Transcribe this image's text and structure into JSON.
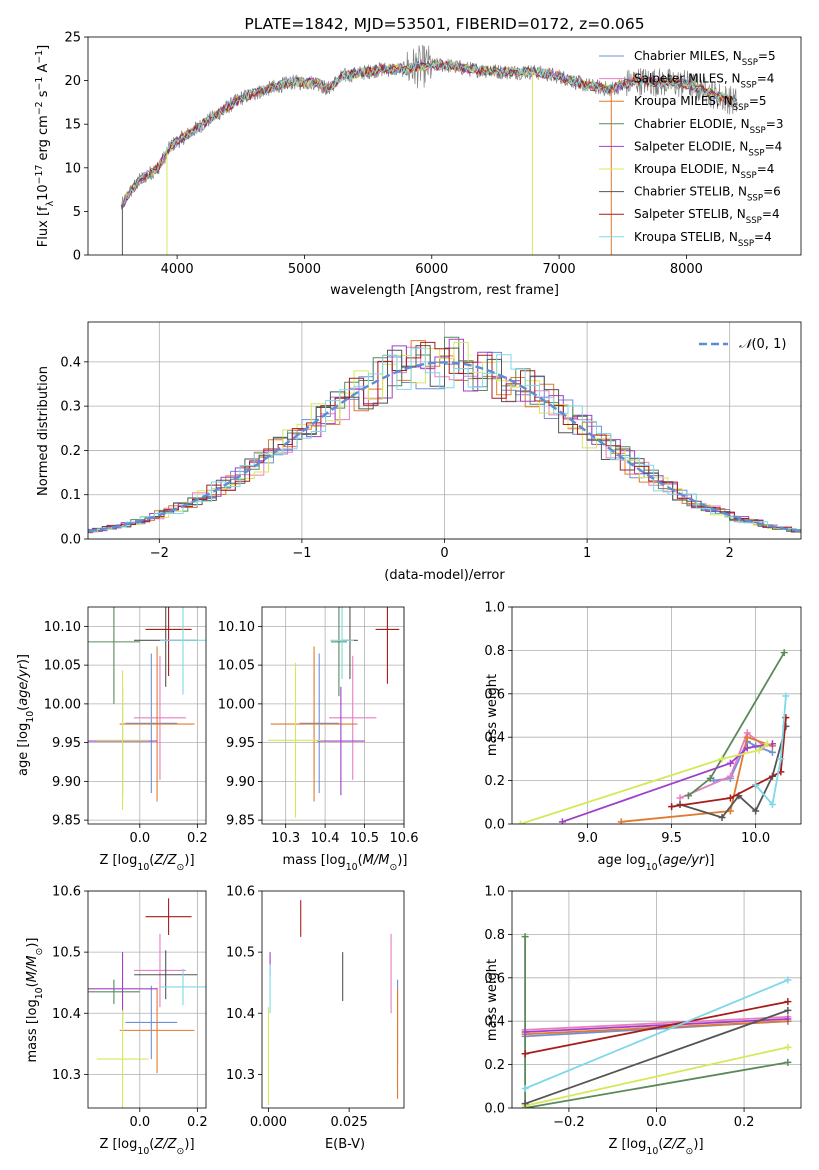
{
  "palette": {
    "Chabrier MILES": "#6f8fd8",
    "Salpeter MILES": "#e87ec2",
    "Kroupa MILES": "#e07a2e",
    "Chabrier ELODIE": "#5a8a5a",
    "Salpeter ELODIE": "#a040c8",
    "Kroupa ELODIE": "#d6e85a",
    "Chabrier STELIB": "#555555",
    "Salpeter STELIB": "#a81c1c",
    "Kroupa STELIB": "#7fd8e8"
  },
  "chart_data": [
    {
      "id": "spectrum",
      "type": "line",
      "title": "PLATE=1842, MJD=53501, FIBERID=0172, z=0.065",
      "xlabel": "wavelength [Angstrom, rest frame]",
      "ylabel": "Flux [f_λ 10^-17 erg cm^-2 s^-1 A^-1]",
      "xlim": [
        3300,
        8900
      ],
      "ylim": [
        0,
        25
      ],
      "xticks": [
        4000,
        5000,
        6000,
        7000,
        8000
      ],
      "yticks": [
        0,
        5,
        10,
        15,
        20,
        25
      ],
      "grid": false,
      "legend_position": "top-right",
      "continuum": [
        [
          3560,
          5.5
        ],
        [
          3620,
          7
        ],
        [
          3700,
          8.5
        ],
        [
          3850,
          10
        ],
        [
          3950,
          12.5
        ],
        [
          4050,
          13.5
        ],
        [
          4250,
          15.5
        ],
        [
          4500,
          18
        ],
        [
          4700,
          19
        ],
        [
          4900,
          19.8
        ],
        [
          5100,
          19.8
        ],
        [
          5180,
          19.0
        ],
        [
          5300,
          20.5
        ],
        [
          5600,
          21.3
        ],
        [
          5800,
          21.3
        ],
        [
          5900,
          21.6
        ],
        [
          6100,
          21.8
        ],
        [
          6300,
          21.3
        ],
        [
          6560,
          21.0
        ],
        [
          6800,
          21.0
        ],
        [
          7000,
          20.5
        ],
        [
          7200,
          19.5
        ],
        [
          7400,
          19.0
        ],
        [
          7600,
          20.0
        ],
        [
          7800,
          19.8
        ],
        [
          8000,
          19.6
        ],
        [
          8200,
          18.5
        ],
        [
          8400,
          17.5
        ]
      ],
      "series": [
        {
          "name": "Chabrier MILES",
          "n_ssp": "5"
        },
        {
          "name": "Salpeter MILES",
          "n_ssp": "4"
        },
        {
          "name": "Kroupa MILES",
          "n_ssp": "5"
        },
        {
          "name": "Chabrier ELODIE",
          "n_ssp": "3"
        },
        {
          "name": "Salpeter ELODIE",
          "n_ssp": "4"
        },
        {
          "name": "Kroupa ELODIE",
          "n_ssp": "4"
        },
        {
          "name": "Chabrier STELIB",
          "n_ssp": "6"
        },
        {
          "name": "Salpeter STELIB",
          "n_ssp": "4"
        },
        {
          "name": "Kroupa STELIB",
          "n_ssp": "4"
        }
      ]
    },
    {
      "id": "residuals",
      "type": "line",
      "xlabel": "(data-model)/error",
      "ylabel": "Normed distribution",
      "xlim": [
        -2.5,
        2.5
      ],
      "ylim": [
        0,
        0.49
      ],
      "xticks": [
        -2,
        -1,
        0,
        1,
        2
      ],
      "yticks": [
        0.0,
        0.1,
        0.2,
        0.3,
        0.4
      ],
      "grid": true,
      "legend": "N(0,1)",
      "legend_position": "top-right",
      "normal_curve": {
        "mean": 0,
        "sigma": 1
      }
    },
    {
      "id": "age-vs-Z",
      "type": "scatter",
      "xlabel": "Z [log10(Z/Z_sun)]",
      "ylabel": "age [log10(age/yr)]",
      "xlim": [
        -0.18,
        0.23
      ],
      "ylim": [
        9.845,
        10.125
      ],
      "xticks": [
        -0.2,
        0.0,
        0.2
      ],
      "yticks": [
        9.85,
        9.9,
        9.95,
        10.0,
        10.05,
        10.1
      ],
      "grid": true,
      "points": [
        {
          "series": "Chabrier MILES",
          "x": 0.04,
          "y": 9.975,
          "xerr": 0.09,
          "yerr": 0.09
        },
        {
          "series": "Salpeter MILES",
          "x": 0.07,
          "y": 9.982,
          "xerr": 0.09,
          "yerr": 0.08
        },
        {
          "series": "Kroupa MILES",
          "x": 0.06,
          "y": 9.974,
          "xerr": 0.13,
          "yerr": 0.1
        },
        {
          "series": "Chabrier ELODIE",
          "x": -0.09,
          "y": 10.08,
          "xerr": 0.09,
          "yerr": 0.08
        },
        {
          "series": "Salpeter ELODIE",
          "x": -0.06,
          "y": 9.952,
          "xerr": 0.12,
          "yerr": 0.07
        },
        {
          "series": "Kroupa ELODIE",
          "x": -0.06,
          "y": 9.953,
          "xerr": 0.09,
          "yerr": 0.09
        },
        {
          "series": "Chabrier STELIB",
          "x": 0.09,
          "y": 10.082,
          "xerr": 0.11,
          "yerr": 0.06
        },
        {
          "series": "Salpeter STELIB",
          "x": 0.1,
          "y": 10.096,
          "xerr": 0.08,
          "yerr": 0.06
        },
        {
          "series": "Kroupa STELIB",
          "x": 0.15,
          "y": 10.082,
          "xerr": 0.08,
          "yerr": 0.07
        }
      ]
    },
    {
      "id": "age-vs-mass",
      "type": "scatter",
      "xlabel": "mass [log10(M/M_sun)]",
      "xlim": [
        10.24,
        10.6
      ],
      "ylim": [
        9.845,
        10.125
      ],
      "xticks": [
        10.3,
        10.4,
        10.5,
        10.6
      ],
      "yticks": [
        9.85,
        9.9,
        9.95,
        10.0,
        10.05,
        10.1
      ],
      "grid": true,
      "points": [
        {
          "series": "Chabrier MILES",
          "x": 10.385,
          "y": 9.975,
          "xerr": 0.05,
          "yerr": 0.09
        },
        {
          "series": "Salpeter MILES",
          "x": 10.47,
          "y": 9.982,
          "xerr": 0.06,
          "yerr": 0.08
        },
        {
          "series": "Kroupa MILES",
          "x": 10.372,
          "y": 9.974,
          "xerr": 0.11,
          "yerr": 0.1
        },
        {
          "series": "Chabrier ELODIE",
          "x": 10.435,
          "y": 10.08,
          "xerr": 0.02,
          "yerr": 0.07
        },
        {
          "series": "Salpeter ELODIE",
          "x": 10.44,
          "y": 9.952,
          "xerr": 0.06,
          "yerr": 0.07
        },
        {
          "series": "Kroupa ELODIE",
          "x": 10.325,
          "y": 9.953,
          "xerr": 0.07,
          "yerr": 0.1
        },
        {
          "series": "Chabrier STELIB",
          "x": 10.463,
          "y": 10.082,
          "xerr": 0.02,
          "yerr": 0.05
        },
        {
          "series": "Salpeter STELIB",
          "x": 10.558,
          "y": 10.096,
          "xerr": 0.03,
          "yerr": 0.07
        },
        {
          "series": "Kroupa STELIB",
          "x": 10.443,
          "y": 10.082,
          "xerr": 0.03,
          "yerr": 0.05
        }
      ]
    },
    {
      "id": "weight-vs-age",
      "type": "line",
      "xlabel": "age log10(age/yr)",
      "ylabel": "mass weight",
      "xlim": [
        8.55,
        10.27
      ],
      "ylim": [
        0,
        1.0
      ],
      "xticks": [
        9.0,
        9.5,
        10.0
      ],
      "yticks": [
        0.0,
        0.2,
        0.4,
        0.6,
        0.8,
        1.0
      ],
      "grid": true,
      "series": [
        {
          "name": "Chabrier MILES",
          "x": [
            9.75,
            9.85,
            9.95,
            10.0,
            10.1
          ],
          "y": [
            0.2,
            0.21,
            0.38,
            0.36,
            0.33
          ]
        },
        {
          "name": "Salpeter MILES",
          "x": [
            9.55,
            9.85,
            9.95,
            10.05
          ],
          "y": [
            0.12,
            0.22,
            0.42,
            0.36
          ]
        },
        {
          "name": "Kroupa MILES",
          "x": [
            9.2,
            9.85,
            9.95,
            10.1
          ],
          "y": [
            0.01,
            0.06,
            0.4,
            0.36
          ]
        },
        {
          "name": "Chabrier ELODIE",
          "x": [
            9.6,
            9.73,
            10.17
          ],
          "y": [
            0.13,
            0.21,
            0.79
          ]
        },
        {
          "name": "Salpeter ELODIE",
          "x": [
            8.85,
            9.85,
            9.95,
            10.1
          ],
          "y": [
            0.01,
            0.28,
            0.35,
            0.37
          ]
        },
        {
          "name": "Kroupa ELODIE",
          "x": [
            8.6,
            9.8,
            10.02,
            10.07
          ],
          "y": [
            0.0,
            0.3,
            0.34,
            0.37
          ]
        },
        {
          "name": "Chabrier STELIB",
          "x": [
            9.55,
            9.8,
            9.9,
            10.0,
            10.1,
            10.18
          ],
          "y": [
            0.09,
            0.03,
            0.13,
            0.06,
            0.22,
            0.45
          ]
        },
        {
          "name": "Salpeter STELIB",
          "x": [
            9.5,
            9.85,
            10.0,
            10.15,
            10.18
          ],
          "y": [
            0.08,
            0.12,
            0.18,
            0.24,
            0.49
          ]
        },
        {
          "name": "Kroupa STELIB",
          "x": [
            10.0,
            10.1,
            10.15,
            10.18
          ],
          "y": [
            0.18,
            0.09,
            0.3,
            0.59
          ]
        }
      ]
    },
    {
      "id": "mass-vs-Z",
      "type": "scatter",
      "xlabel": "Z [log10(Z/Z_sun)]",
      "ylabel": "mass [log10(M/M_sun)]",
      "xlim": [
        -0.18,
        0.23
      ],
      "ylim": [
        10.245,
        10.6
      ],
      "xticks": [
        -0.2,
        0.0,
        0.2
      ],
      "yticks": [
        10.3,
        10.4,
        10.5,
        10.6
      ],
      "grid": true,
      "points": [
        {
          "series": "Chabrier MILES",
          "x": 0.04,
          "y": 10.385,
          "xerr": 0.09,
          "yerr": 0.06
        },
        {
          "series": "Salpeter MILES",
          "x": 0.07,
          "y": 10.47,
          "xerr": 0.09,
          "yerr": 0.06
        },
        {
          "series": "Kroupa MILES",
          "x": 0.06,
          "y": 10.372,
          "xerr": 0.13,
          "yerr": 0.07
        },
        {
          "series": "Chabrier ELODIE",
          "x": -0.09,
          "y": 10.435,
          "xerr": 0.09,
          "yerr": 0.02
        },
        {
          "series": "Salpeter ELODIE",
          "x": -0.06,
          "y": 10.44,
          "xerr": 0.12,
          "yerr": 0.06
        },
        {
          "series": "Kroupa ELODIE",
          "x": -0.06,
          "y": 10.325,
          "xerr": 0.09,
          "yerr": 0.08
        },
        {
          "series": "Chabrier STELIB",
          "x": 0.09,
          "y": 10.463,
          "xerr": 0.11,
          "yerr": 0.04
        },
        {
          "series": "Salpeter STELIB",
          "x": 0.1,
          "y": 10.558,
          "xerr": 0.08,
          "yerr": 0.03
        },
        {
          "series": "Kroupa STELIB",
          "x": 0.15,
          "y": 10.443,
          "xerr": 0.08,
          "yerr": 0.03
        }
      ]
    },
    {
      "id": "mass-vs-ebv",
      "type": "scatter",
      "xlabel": "E(B-V)",
      "xlim": [
        -0.002,
        0.042
      ],
      "ylim": [
        10.245,
        10.6
      ],
      "xticks": [
        0.0,
        0.025
      ],
      "yticks": [
        10.3,
        10.4,
        10.5,
        10.6
      ],
      "grid": false,
      "points": [
        {
          "series": "Chabrier MILES",
          "x": 0.04,
          "y": 10.385,
          "yerr": 0.07
        },
        {
          "series": "Salpeter MILES",
          "x": 0.038,
          "y": 10.465,
          "yerr": 0.065
        },
        {
          "series": "Kroupa MILES",
          "x": 0.04,
          "y": 10.35,
          "yerr": 0.09
        },
        {
          "series": "Salpeter ELODIE",
          "x": 0.0005,
          "y": 10.48,
          "yerr": 0.02
        },
        {
          "series": "Kroupa ELODIE",
          "x": 0.0,
          "y": 10.33,
          "yerr": 0.08
        },
        {
          "series": "Chabrier STELIB",
          "x": 0.023,
          "y": 10.46,
          "yerr": 0.04
        },
        {
          "series": "Salpeter STELIB",
          "x": 0.01,
          "y": 10.555,
          "yerr": 0.03
        },
        {
          "series": "Kroupa STELIB",
          "x": 0.0005,
          "y": 10.44,
          "yerr": 0.04
        }
      ]
    },
    {
      "id": "weight-vs-Z",
      "type": "line",
      "xlabel": "Z [log10(Z/Z_sun)]",
      "ylabel": "mass weight",
      "xlim": [
        -0.33,
        0.33
      ],
      "ylim": [
        0,
        1.0
      ],
      "xticks": [
        -0.2,
        0.0,
        0.2
      ],
      "yticks": [
        0.0,
        0.2,
        0.4,
        0.6,
        0.8,
        1.0
      ],
      "grid": true,
      "series": [
        {
          "name": "Chabrier MILES",
          "x": [
            -0.3,
            0.3
          ],
          "y": [
            0.33,
            0.4
          ]
        },
        {
          "name": "Salpeter MILES",
          "x": [
            -0.3,
            0.3
          ],
          "y": [
            0.36,
            0.42
          ]
        },
        {
          "name": "Kroupa MILES",
          "x": [
            -0.3,
            0.3
          ],
          "y": [
            0.34,
            0.4
          ]
        },
        {
          "name": "Chabrier ELODIE",
          "x": [
            -0.3,
            -0.3,
            0.3
          ],
          "y": [
            0.79,
            0.0,
            0.21
          ]
        },
        {
          "name": "Salpeter ELODIE",
          "x": [
            -0.3,
            0.3
          ],
          "y": [
            0.35,
            0.41
          ]
        },
        {
          "name": "Kroupa ELODIE",
          "x": [
            -0.3,
            0.3
          ],
          "y": [
            0.01,
            0.28
          ]
        },
        {
          "name": "Chabrier STELIB",
          "x": [
            -0.3,
            0.3
          ],
          "y": [
            0.02,
            0.45
          ]
        },
        {
          "name": "Salpeter STELIB",
          "x": [
            -0.3,
            0.3
          ],
          "y": [
            0.25,
            0.49
          ]
        },
        {
          "name": "Kroupa STELIB",
          "x": [
            -0.3,
            0.3
          ],
          "y": [
            0.09,
            0.59
          ]
        }
      ]
    }
  ]
}
